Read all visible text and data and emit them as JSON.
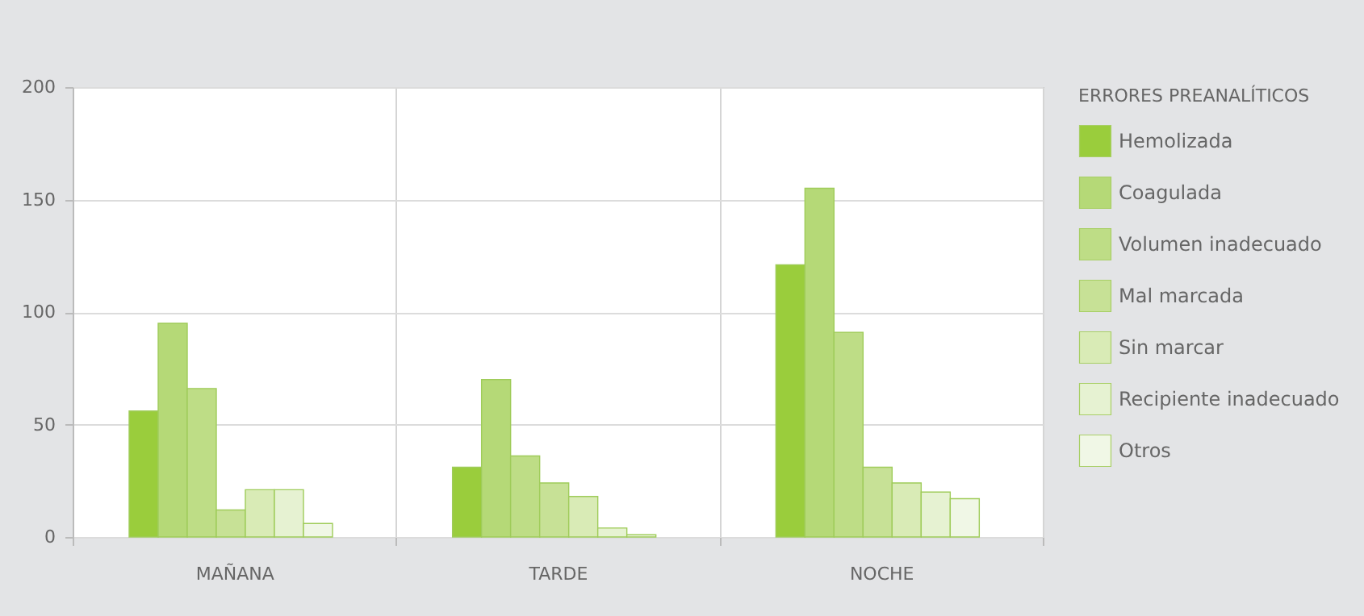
{
  "chart_data": {
    "type": "bar",
    "legend_title": "ERRORES PREANALÍTICOS",
    "categories": [
      "MAÑANA",
      "TARDE",
      "NOCHE"
    ],
    "series": [
      {
        "name": "Hemolizada",
        "color": "#9acd3c",
        "values": [
          56,
          31,
          121
        ]
      },
      {
        "name": "Coagulada",
        "color": "#b5d977",
        "values": [
          95,
          70,
          155
        ]
      },
      {
        "name": "Volumen inadecuado",
        "color": "#bedd86",
        "values": [
          66,
          36,
          91
        ]
      },
      {
        "name": "Mal marcada",
        "color": "#c7e196",
        "values": [
          12,
          24,
          31
        ]
      },
      {
        "name": "Sin marcar",
        "color": "#d9ebb6",
        "values": [
          21,
          18,
          24
        ]
      },
      {
        "name": "Recipiente inadecuado",
        "color": "#e6f2d2",
        "values": [
          21,
          4,
          20
        ]
      },
      {
        "name": "Otros",
        "color": "#f0f7e6",
        "values": [
          6,
          1,
          17
        ]
      }
    ],
    "ylim": [
      0,
      200
    ],
    "yticks": [
      0,
      50,
      100,
      150,
      200
    ],
    "grid": true,
    "legend": "right"
  }
}
